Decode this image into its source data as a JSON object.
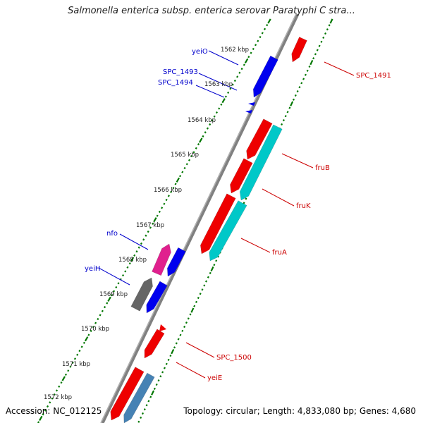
{
  "title": "Salmonella enterica subsp. enterica serovar Paratyphi C stra...",
  "footer": {
    "accession": "Accession: NC_012125",
    "topology": "Topology: circular; Length: 4,833,080 bp; Genes: 4,680"
  },
  "colors": {
    "backbone": "#808080",
    "tick": "#007700",
    "forward_label": "#0000cc",
    "reverse_label": "#cc0000",
    "red_feature": "#ee0000",
    "blue_feature": "#0000ee",
    "cyan_feature": "#00c8c8",
    "magenta_feature": "#e0208e",
    "gray_feature": "#666666",
    "steelblue_feature": "#4682b4"
  },
  "kbp_labels": [
    "1562 kbp",
    "1563 kbp",
    "1564 kbp",
    "1565 kbp",
    "1566 kbp",
    "1567 kbp",
    "1568 kbp",
    "1569 kbp",
    "1570 kbp",
    "1571 kbp",
    "1572 kbp"
  ],
  "gene_labels": [
    {
      "text": "yeiO",
      "strand": "forward"
    },
    {
      "text": "SPC_1493",
      "strand": "forward"
    },
    {
      "text": "SPC_1494",
      "strand": "forward"
    },
    {
      "text": "nfo",
      "strand": "forward"
    },
    {
      "text": "yeiH",
      "strand": "forward"
    },
    {
      "text": "SPC_1491",
      "strand": "reverse"
    },
    {
      "text": "fruB",
      "strand": "reverse"
    },
    {
      "text": "fruK",
      "strand": "reverse"
    },
    {
      "text": "fruA",
      "strand": "reverse"
    },
    {
      "text": "SPC_1500",
      "strand": "reverse"
    },
    {
      "text": "yeiE",
      "strand": "reverse"
    }
  ]
}
